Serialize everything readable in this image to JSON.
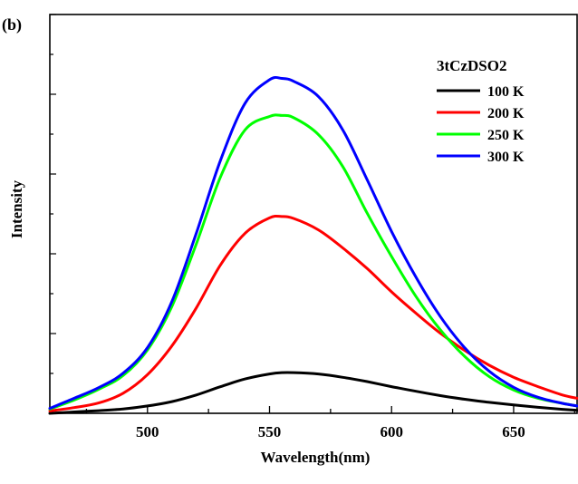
{
  "panel_label": "(b)",
  "chart_data": {
    "type": "line",
    "title": "",
    "xlabel": "Wavelength(nm)",
    "ylabel": "Intensity",
    "xlim": [
      460,
      676
    ],
    "ylim": [
      0,
      1.0
    ],
    "x_ticks": [
      500,
      550,
      600,
      650
    ],
    "y_ticks_labeled": false,
    "grid": false,
    "legend_title": "3tCzDSO2",
    "legend_position": "top-right",
    "x": [
      460,
      470,
      480,
      490,
      500,
      510,
      520,
      530,
      540,
      550,
      555,
      560,
      570,
      580,
      590,
      600,
      610,
      620,
      630,
      640,
      650,
      660,
      670,
      676
    ],
    "series": [
      {
        "name": "100 K",
        "color": "#000000",
        "values": [
          0.0,
          0.004,
          0.008,
          0.013,
          0.022,
          0.035,
          0.055,
          0.08,
          0.103,
          0.118,
          0.122,
          0.122,
          0.118,
          0.108,
          0.095,
          0.08,
          0.066,
          0.053,
          0.042,
          0.033,
          0.025,
          0.018,
          0.012,
          0.009
        ]
      },
      {
        "name": "200 K",
        "color": "#ff0000",
        "values": [
          0.007,
          0.017,
          0.031,
          0.06,
          0.116,
          0.202,
          0.316,
          0.446,
          0.54,
          0.586,
          0.59,
          0.584,
          0.55,
          0.496,
          0.434,
          0.364,
          0.3,
          0.24,
          0.188,
          0.144,
          0.108,
          0.08,
          0.055,
          0.045
        ]
      },
      {
        "name": "250 K",
        "color": "#00ff00",
        "values": [
          0.013,
          0.04,
          0.072,
          0.113,
          0.19,
          0.32,
          0.508,
          0.71,
          0.85,
          0.89,
          0.893,
          0.886,
          0.836,
          0.74,
          0.6,
          0.47,
          0.35,
          0.25,
          0.17,
          0.11,
          0.07,
          0.045,
          0.03,
          0.022
        ]
      },
      {
        "name": "300 K",
        "color": "#0000ff",
        "values": [
          0.015,
          0.045,
          0.077,
          0.12,
          0.197,
          0.335,
          0.54,
          0.76,
          0.93,
          1.0,
          1.004,
          0.995,
          0.95,
          0.85,
          0.7,
          0.545,
          0.408,
          0.29,
          0.196,
          0.126,
          0.078,
          0.048,
          0.03,
          0.022
        ]
      }
    ]
  }
}
